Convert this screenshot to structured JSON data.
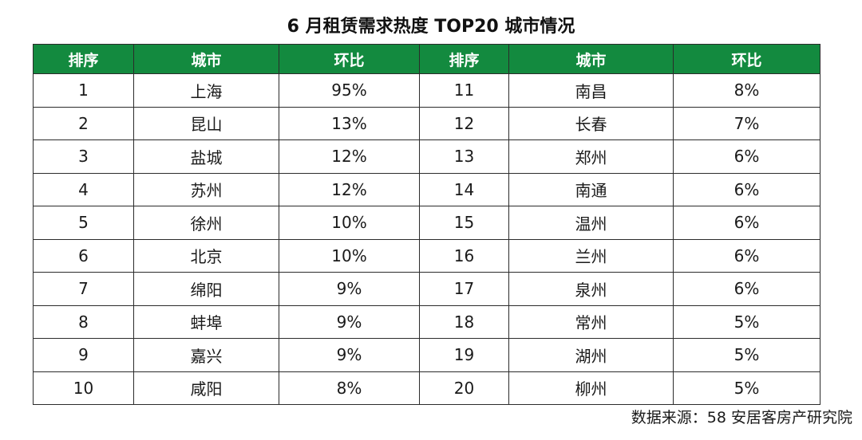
{
  "title": "6 月租赁需求热度 TOP20 城市情况",
  "table": {
    "headers": [
      "排序",
      "城市",
      "环比",
      "排序",
      "城市",
      "环比"
    ],
    "rows": [
      [
        "1",
        "上海",
        "95%",
        "11",
        "南昌",
        "8%"
      ],
      [
        "2",
        "昆山",
        "13%",
        "12",
        "长春",
        "7%"
      ],
      [
        "3",
        "盐城",
        "12%",
        "13",
        "郑州",
        "6%"
      ],
      [
        "4",
        "苏州",
        "12%",
        "14",
        "南通",
        "6%"
      ],
      [
        "5",
        "徐州",
        "10%",
        "15",
        "温州",
        "6%"
      ],
      [
        "6",
        "北京",
        "10%",
        "16",
        "兰州",
        "6%"
      ],
      [
        "7",
        "绵阳",
        "9%",
        "17",
        "泉州",
        "6%"
      ],
      [
        "8",
        "蚌埠",
        "9%",
        "18",
        "常州",
        "5%"
      ],
      [
        "9",
        "嘉兴",
        "9%",
        "19",
        "湖州",
        "5%"
      ],
      [
        "10",
        "咸阳",
        "8%",
        "20",
        "柳州",
        "5%"
      ]
    ]
  },
  "source": "数据来源：58 安居客房产研究院",
  "colors": {
    "header_bg": "#138a3f",
    "header_text": "#ffffff",
    "border": "#2b2b2b"
  }
}
